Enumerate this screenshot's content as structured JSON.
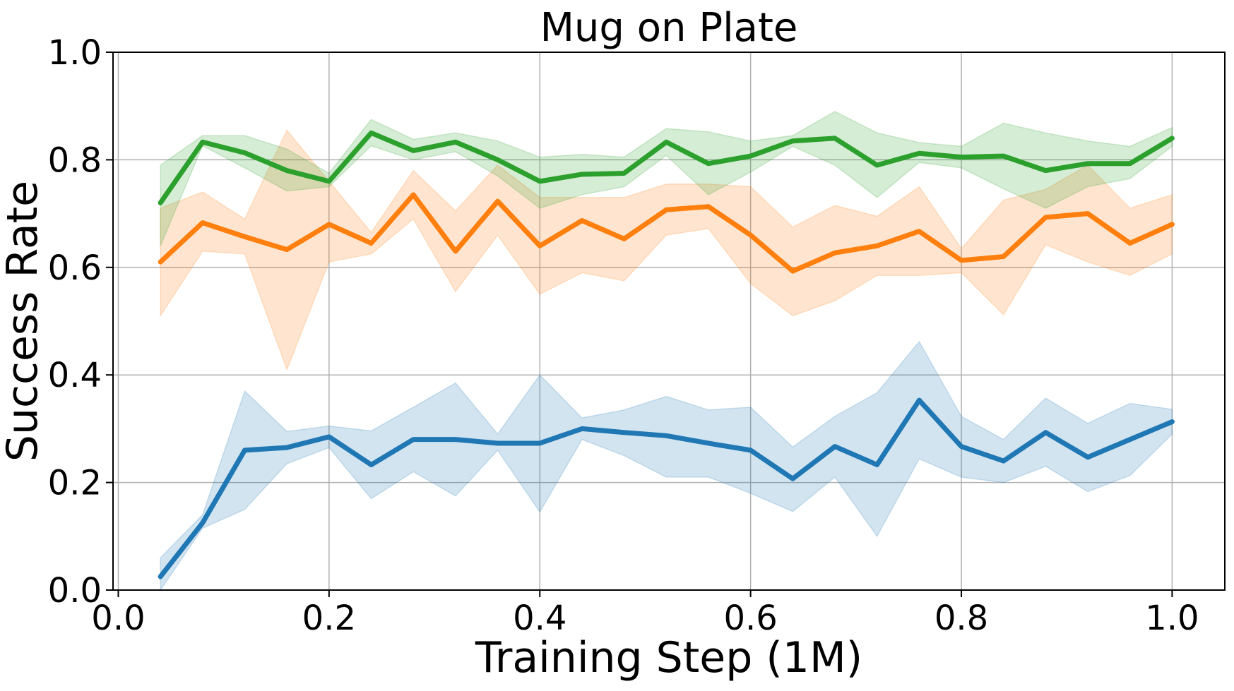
{
  "chart_data": {
    "type": "line",
    "title": "Mug on Plate",
    "xlabel": "Training Step (1M)",
    "ylabel": "Success Rate",
    "xlim": [
      -0.005,
      1.05
    ],
    "ylim": [
      0.0,
      1.0
    ],
    "xticks": [
      "0.0",
      "0.2",
      "0.4",
      "0.6",
      "0.8",
      "1.0"
    ],
    "yticks": [
      "0.0",
      "0.2",
      "0.4",
      "0.6",
      "0.8",
      "1.0"
    ],
    "grid": true,
    "x": [
      0.04,
      0.08,
      0.12,
      0.16,
      0.2,
      0.24,
      0.28,
      0.32,
      0.36,
      0.4,
      0.44,
      0.48,
      0.52,
      0.56,
      0.6,
      0.64,
      0.68,
      0.72,
      0.76,
      0.8,
      0.84,
      0.88,
      0.92,
      0.96,
      1.0
    ],
    "series": [
      {
        "color": "#1f77b4",
        "values": [
          0.025,
          0.125,
          0.26,
          0.265,
          0.285,
          0.233,
          0.28,
          0.28,
          0.273,
          0.273,
          0.3,
          0.293,
          0.287,
          0.273,
          0.26,
          0.207,
          0.267,
          0.233,
          0.353,
          0.267,
          0.24,
          0.293,
          0.247,
          0.28,
          0.313
        ],
        "upper": [
          0.06,
          0.14,
          0.37,
          0.295,
          0.305,
          0.296,
          0.34,
          0.385,
          0.29,
          0.4,
          0.32,
          0.335,
          0.36,
          0.335,
          0.34,
          0.266,
          0.323,
          0.367,
          0.462,
          0.323,
          0.28,
          0.357,
          0.31,
          0.347,
          0.336
        ],
        "lower": [
          0.0,
          0.115,
          0.15,
          0.235,
          0.265,
          0.17,
          0.22,
          0.175,
          0.26,
          0.145,
          0.28,
          0.25,
          0.21,
          0.21,
          0.18,
          0.146,
          0.21,
          0.1,
          0.244,
          0.21,
          0.2,
          0.23,
          0.183,
          0.213,
          0.29
        ]
      },
      {
        "color": "#ff7f0e",
        "values": [
          0.61,
          0.683,
          0.657,
          0.633,
          0.68,
          0.645,
          0.735,
          0.63,
          0.723,
          0.64,
          0.687,
          0.653,
          0.707,
          0.713,
          0.66,
          0.593,
          0.627,
          0.64,
          0.667,
          0.613,
          0.62,
          0.693,
          0.7,
          0.645,
          0.68
        ],
        "upper": [
          0.71,
          0.74,
          0.69,
          0.855,
          0.76,
          0.665,
          0.78,
          0.705,
          0.79,
          0.73,
          0.73,
          0.73,
          0.755,
          0.755,
          0.75,
          0.675,
          0.715,
          0.695,
          0.75,
          0.635,
          0.725,
          0.745,
          0.79,
          0.71,
          0.735
        ],
        "lower": [
          0.51,
          0.63,
          0.625,
          0.41,
          0.61,
          0.625,
          0.69,
          0.555,
          0.66,
          0.55,
          0.59,
          0.575,
          0.66,
          0.672,
          0.57,
          0.51,
          0.538,
          0.585,
          0.585,
          0.59,
          0.512,
          0.642,
          0.61,
          0.585,
          0.625
        ]
      },
      {
        "color": "#2ca02c",
        "values": [
          0.72,
          0.833,
          0.813,
          0.78,
          0.76,
          0.85,
          0.817,
          0.833,
          0.8,
          0.76,
          0.773,
          0.775,
          0.833,
          0.793,
          0.807,
          0.835,
          0.84,
          0.79,
          0.812,
          0.805,
          0.807,
          0.78,
          0.793,
          0.793,
          0.84
        ],
        "upper": [
          0.79,
          0.845,
          0.845,
          0.82,
          0.775,
          0.875,
          0.838,
          0.85,
          0.835,
          0.805,
          0.81,
          0.805,
          0.858,
          0.852,
          0.835,
          0.845,
          0.89,
          0.85,
          0.832,
          0.825,
          0.868,
          0.85,
          0.835,
          0.825,
          0.86
        ],
        "lower": [
          0.64,
          0.826,
          0.785,
          0.742,
          0.75,
          0.826,
          0.8,
          0.815,
          0.77,
          0.71,
          0.735,
          0.75,
          0.808,
          0.735,
          0.777,
          0.825,
          0.79,
          0.73,
          0.795,
          0.785,
          0.746,
          0.71,
          0.75,
          0.765,
          0.825
        ]
      }
    ]
  }
}
